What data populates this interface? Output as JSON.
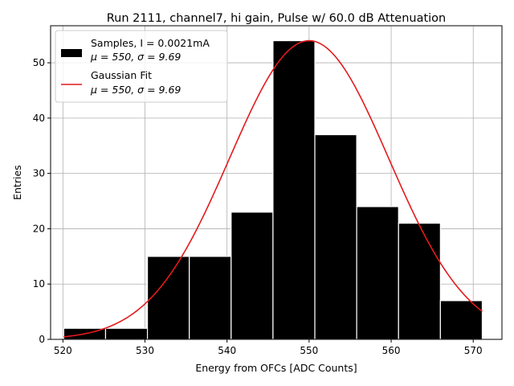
{
  "chart_data": {
    "type": "bar",
    "title": "Run 2111, channel7, hi gain, Pulse w/ 60.0 dB Attenuation",
    "xlabel": "Energy from OFCs [ADC Counts]",
    "ylabel": "Entries",
    "xlim": [
      518.5,
      573.5
    ],
    "ylim": [
      0,
      56.7
    ],
    "x_ticks": [
      "520",
      "530",
      "540",
      "550",
      "560",
      "570"
    ],
    "y_ticks": [
      "0",
      "10",
      "20",
      "30",
      "40",
      "50"
    ],
    "grid": true,
    "bin_edges": [
      520.1,
      525.2,
      530.3,
      535.4,
      540.5,
      545.6,
      550.7,
      555.8,
      560.9,
      566.0,
      571.1
    ],
    "values": [
      2,
      2,
      15,
      15,
      23,
      54,
      37,
      24,
      21,
      7
    ],
    "bar_color": "#000000",
    "edge_color": "#ffffff",
    "fit": {
      "type": "gaussian",
      "amplitude": 54,
      "mu": 550,
      "sigma": 9.69,
      "x_range": [
        520.1,
        571.1
      ],
      "color": "#e31a1c"
    },
    "legend": {
      "position": "top-left",
      "entries": [
        {
          "line1": "Samples, I = 0.0021mA",
          "mu_label": "μ = 550, σ = 9.69"
        },
        {
          "line1": "Gaussian Fit",
          "mu_label": "μ = 550, σ = 9.69"
        }
      ]
    }
  }
}
